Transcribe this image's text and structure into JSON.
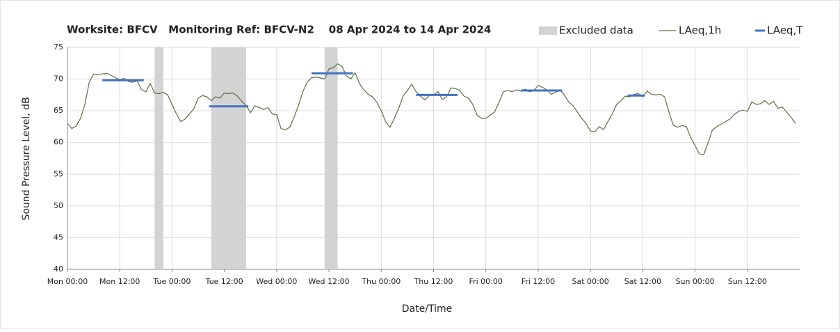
{
  "chart_data": {
    "type": "line",
    "title": "Worksite: BFCV   Monitoring Ref: BFCV-N2    08 Apr 2024 to 14 Apr 2024",
    "xlabel": "Date/Time",
    "ylabel": "Sound Pressure Level, dB",
    "xlim": [
      0,
      168
    ],
    "xticks": [
      {
        "value": 0,
        "label": "Mon 00:00"
      },
      {
        "value": 12,
        "label": "Mon 12:00"
      },
      {
        "value": 24,
        "label": "Tue 00:00"
      },
      {
        "value": 36,
        "label": "Tue 12:00"
      },
      {
        "value": 48,
        "label": "Wed 00:00"
      },
      {
        "value": 60,
        "label": "Wed 12:00"
      },
      {
        "value": 72,
        "label": "Thu 00:00"
      },
      {
        "value": 84,
        "label": "Thu 12:00"
      },
      {
        "value": 96,
        "label": "Fri 00:00"
      },
      {
        "value": 108,
        "label": "Fri 12:00"
      },
      {
        "value": 120,
        "label": "Sat 00:00"
      },
      {
        "value": 132,
        "label": "Sat 12:00"
      },
      {
        "value": 144,
        "label": "Sun 00:00"
      },
      {
        "value": 156,
        "label": "Sun 12:00"
      }
    ],
    "ylim": [
      40,
      75
    ],
    "yticks": [
      40,
      45,
      50,
      55,
      60,
      65,
      70,
      75
    ],
    "grid": true,
    "legend": "top-right",
    "excluded": {
      "name": "Excluded data",
      "color": "#d3d3d3",
      "ranges": [
        [
          20,
          22
        ],
        [
          33,
          41
        ],
        [
          59,
          62
        ]
      ]
    },
    "series": [
      {
        "name": "LAeq,1h",
        "color": "#5a6e46",
        "x": [
          0,
          1,
          2,
          3,
          4,
          5,
          6,
          7,
          8,
          9,
          10,
          11,
          12,
          13,
          14,
          15,
          16,
          17,
          18,
          19,
          20,
          21,
          22,
          23,
          24,
          25,
          26,
          27,
          28,
          29,
          30,
          31,
          32,
          33,
          34,
          35,
          36,
          37,
          38,
          39,
          40,
          41,
          42,
          43,
          44,
          45,
          46,
          47,
          48,
          49,
          50,
          51,
          52,
          53,
          54,
          55,
          56,
          57,
          58,
          59,
          60,
          61,
          62,
          63,
          64,
          65,
          66,
          67,
          68,
          69,
          70,
          71,
          72,
          73,
          74,
          75,
          76,
          77,
          78,
          79,
          80,
          81,
          82,
          83,
          84,
          85,
          86,
          87,
          88,
          89,
          90,
          91,
          92,
          93,
          94,
          95,
          96,
          97,
          98,
          99,
          100,
          101,
          102,
          103,
          104,
          105,
          106,
          107,
          108,
          109,
          110,
          111,
          112,
          113,
          114,
          115,
          116,
          117,
          118,
          119,
          120,
          121,
          122,
          123,
          124,
          125,
          126,
          127,
          128,
          129,
          130,
          131,
          132,
          133,
          134,
          135,
          136,
          137,
          138,
          139,
          140,
          141,
          142,
          143,
          144,
          145,
          146,
          147,
          148,
          149,
          150,
          151,
          152,
          153,
          154,
          155,
          156,
          157,
          158,
          159,
          160,
          161,
          162,
          163,
          164,
          165,
          166,
          167
        ],
        "values": [
          63.0,
          62.2,
          62.6,
          63.8,
          66.0,
          69.5,
          70.8,
          70.7,
          70.8,
          70.9,
          70.6,
          70.2,
          69.9,
          70.1,
          69.6,
          69.5,
          69.7,
          68.3,
          68.0,
          69.3,
          67.8,
          67.7,
          67.9,
          67.5,
          66.0,
          64.5,
          63.3,
          63.7,
          64.5,
          65.3,
          67.0,
          67.4,
          67.2,
          66.6,
          67.2,
          67.0,
          67.8,
          67.7,
          67.8,
          67.3,
          66.5,
          65.8,
          64.7,
          65.8,
          65.5,
          65.2,
          65.5,
          64.5,
          64.4,
          62.2,
          62.0,
          62.4,
          64.0,
          65.8,
          68.0,
          69.5,
          70.2,
          70.3,
          70.2,
          70.0,
          71.6,
          71.8,
          72.4,
          72.0,
          70.5,
          70.0,
          71.0,
          69.3,
          68.3,
          67.6,
          67.2,
          66.3,
          65.0,
          63.3,
          62.4,
          63.8,
          65.4,
          67.3,
          68.2,
          69.2,
          68.0,
          67.3,
          66.7,
          67.4,
          67.5,
          68.0,
          66.8,
          67.2,
          68.6,
          68.5,
          68.2,
          67.3,
          67.0,
          66.0,
          64.3,
          63.8,
          63.8,
          64.3,
          64.8,
          66.3,
          68.0,
          68.2,
          68.0,
          68.3,
          68.1,
          68.4,
          68.0,
          68.2,
          69.0,
          68.7,
          68.3,
          67.6,
          67.9,
          68.3,
          67.5,
          66.4,
          65.8,
          64.8,
          63.8,
          63.0,
          61.8,
          61.7,
          62.5,
          62.0,
          63.3,
          64.5,
          66.0,
          66.6,
          67.3,
          67.2,
          67.6,
          67.7,
          67.2,
          68.1,
          67.6,
          67.5,
          67.6,
          67.2,
          64.8,
          62.7,
          62.4,
          62.7,
          62.5,
          60.8,
          59.5,
          58.2,
          58.1,
          60.0,
          62.0,
          62.5,
          62.9,
          63.3,
          63.7,
          64.4,
          64.9,
          65.1,
          64.9,
          66.4,
          66.0,
          66.1,
          66.6,
          66.0,
          66.5,
          65.4,
          65.6,
          64.8,
          64.0,
          63.0
        ]
      },
      {
        "name": "LAeq,T",
        "color": "#4472c4",
        "segments": [
          {
            "x": [
              8,
              17.5
            ],
            "value": 69.8
          },
          {
            "x": [
              32.5,
              41.5
            ],
            "value": 65.7
          },
          {
            "x": [
              56,
              65.5
            ],
            "value": 70.9
          },
          {
            "x": [
              80,
              89.5
            ],
            "value": 67.5
          },
          {
            "x": [
              104,
              113.5
            ],
            "value": 68.2
          },
          {
            "x": [
              128.5,
              132.5
            ],
            "value": 67.4
          }
        ]
      }
    ]
  }
}
